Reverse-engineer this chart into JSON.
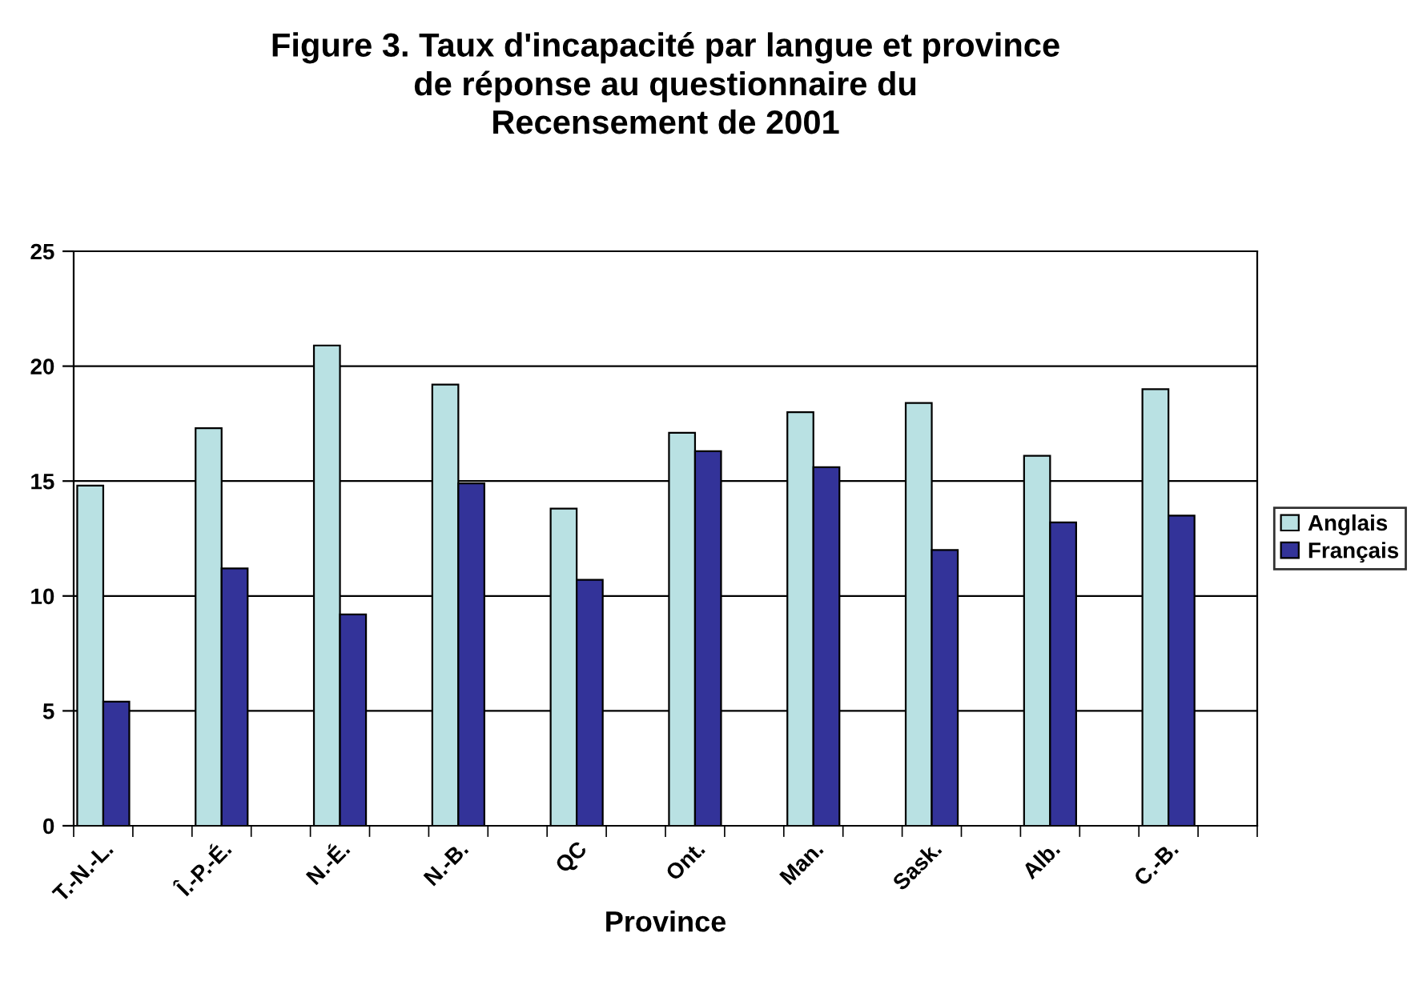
{
  "chart_data": {
    "type": "bar",
    "title": "Figure 3. Taux d'incapacité par langue et province\nde réponse au questionnaire du\nRecensement de 2001",
    "xlabel": "Province",
    "categories": [
      "T.-N.-L.",
      "Î.-P.-É.",
      "N.-É.",
      "N.-B.",
      "QC",
      "Ont.",
      "Man.",
      "Sask.",
      "Alb.",
      "C.-B."
    ],
    "series": [
      {
        "name": "Anglais",
        "color": "#b9e1e3",
        "values": [
          14.8,
          17.3,
          20.9,
          19.2,
          13.8,
          17.1,
          18.0,
          18.4,
          16.1,
          19.0
        ]
      },
      {
        "name": "Français",
        "color": "#333399",
        "values": [
          5.4,
          11.2,
          9.2,
          14.9,
          10.7,
          16.3,
          15.6,
          12.0,
          13.2,
          13.5
        ]
      }
    ],
    "ylim": [
      0,
      25
    ],
    "yticks": [
      0,
      5,
      10,
      15,
      20,
      25
    ],
    "grid": "y",
    "legend": "right"
  }
}
